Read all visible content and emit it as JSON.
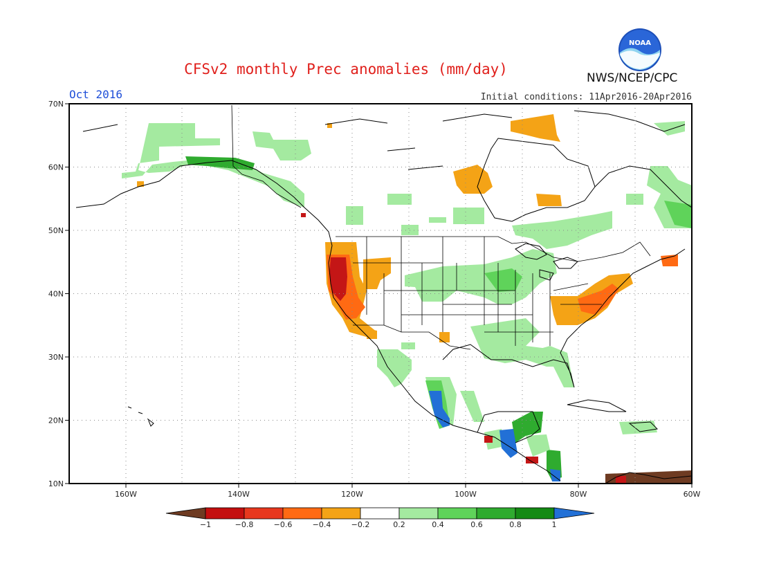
{
  "title": "CFSv2 monthly Prec anomalies (mm/day)",
  "period": "Oct 2016",
  "initial_conditions": "Initial conditions: 11Apr2016-20Apr2016",
  "agency": "NWS/NCEP/CPC",
  "logo_text": "NOAA",
  "axes": {
    "lat_labels": [
      "70N",
      "60N",
      "50N",
      "40N",
      "30N",
      "20N",
      "10N"
    ],
    "lon_labels": [
      "160W",
      "140W",
      "120W",
      "100W",
      "80W",
      "60W"
    ]
  },
  "colorbar": {
    "labels": [
      "-1",
      "-0.8",
      "-0.6",
      "-0.4",
      "-0.2",
      "0.2",
      "0.4",
      "0.6",
      "0.8",
      "1"
    ],
    "colors": [
      "#6e3b22",
      "#c40f0f",
      "#e8381e",
      "#ff6a13",
      "#f4a316",
      "#ffffff",
      "#a4eaa0",
      "#5fd35a",
      "#2fab2f",
      "#148a14",
      "#2270d6"
    ]
  },
  "anomaly_regions": [
    {
      "name": "west-coast-dry-core",
      "color": "#c41616"
    },
    {
      "name": "west-coast-dry",
      "color": "#ff6a13"
    },
    {
      "name": "great-basin-dry",
      "color": "#f4a316"
    },
    {
      "name": "mid-atlantic-dry",
      "color": "#ff6a13"
    },
    {
      "name": "hudson-bay-dry",
      "color": "#f4a316"
    },
    {
      "name": "alaska-wet",
      "color": "#a4eaa0"
    },
    {
      "name": "central-us-wet",
      "color": "#a4eaa0"
    },
    {
      "name": "mexico-wet",
      "color": "#5fd35a"
    },
    {
      "name": "central-america-wet",
      "color": "#2fab2f"
    },
    {
      "name": "mexico-very-wet",
      "color": "#2270d6"
    }
  ]
}
